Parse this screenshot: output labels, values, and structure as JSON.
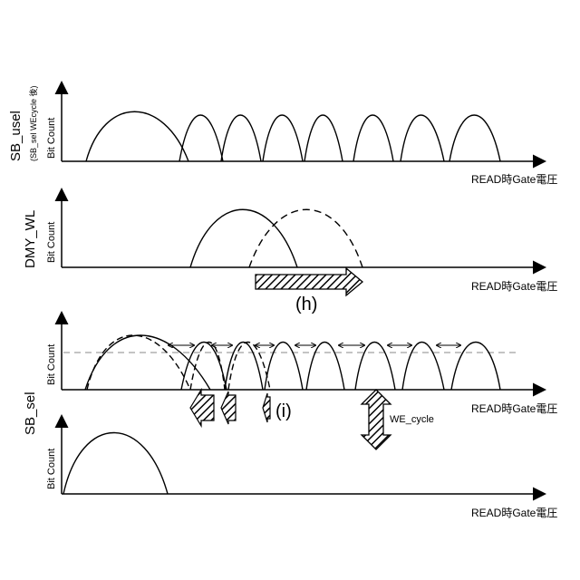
{
  "panels": {
    "top": {
      "side_title": "SB_usel",
      "side_subtitle": "(SB_sel  WEcycle 後)",
      "y_label": "Bit Count",
      "x_label": "READ時Gate電圧"
    },
    "second": {
      "side_title": "DMY_WL",
      "y_label": "Bit Count",
      "x_label": "READ時Gate電圧",
      "shift_marker": "(h)"
    },
    "third": {
      "y_label": "Bit Count",
      "x_label": "READ時Gate電圧",
      "shift_marker": "(i)",
      "cycle_label": "WE_cycle"
    },
    "bottom": {
      "y_label": "Bit Count",
      "x_label": "READ時Gate電圧"
    },
    "shared_side_title": "SB_sel"
  },
  "colors": {
    "line": "#000000",
    "dashed_reference": "#888888",
    "hatch_fill": "#ffffff"
  }
}
